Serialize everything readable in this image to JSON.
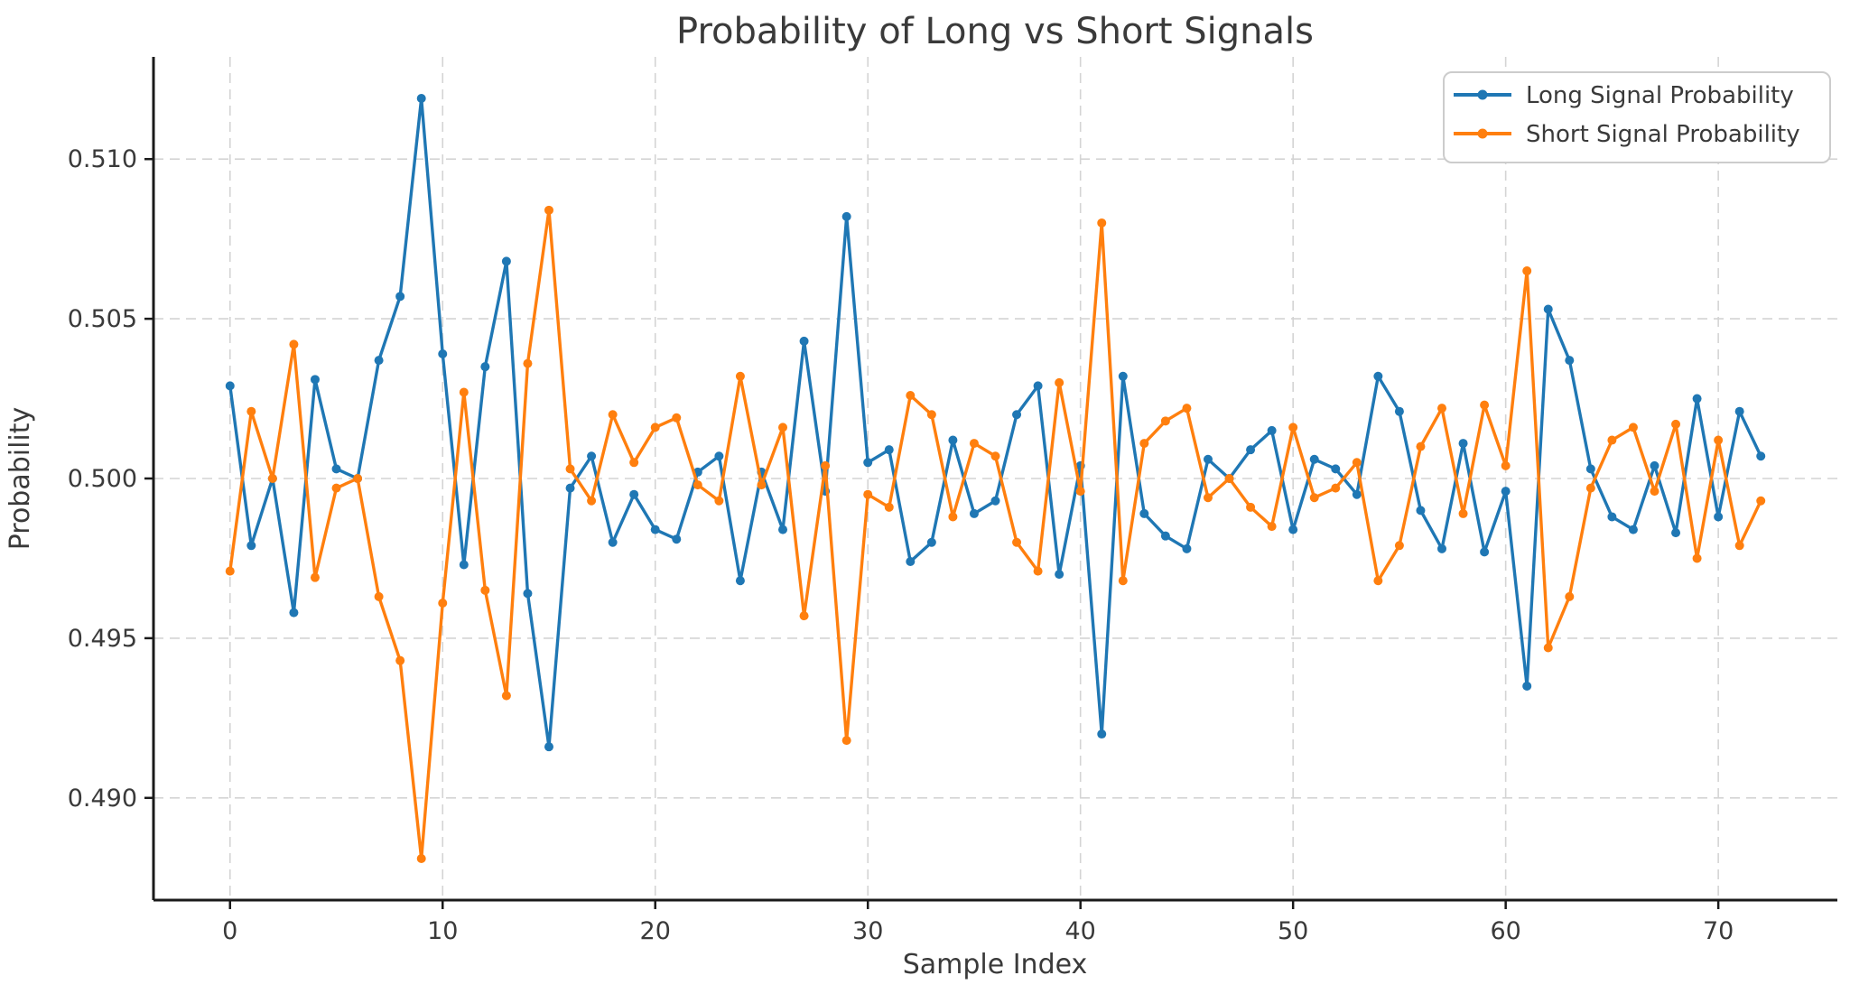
{
  "chart_data": {
    "type": "line",
    "title": "Probability of Long vs Short Signals",
    "xlabel": "Sample Index",
    "ylabel": "Probability",
    "x": [
      0,
      1,
      2,
      3,
      4,
      5,
      6,
      7,
      8,
      9,
      10,
      11,
      12,
      13,
      14,
      15,
      16,
      17,
      18,
      19,
      20,
      21,
      22,
      23,
      24,
      25,
      26,
      27,
      28,
      29,
      30,
      31,
      32,
      33,
      34,
      35,
      36,
      37,
      38,
      39,
      40,
      41,
      42,
      43,
      44,
      45,
      46,
      47,
      48,
      49,
      50,
      51,
      52,
      53,
      54,
      55,
      56,
      57,
      58,
      59,
      60,
      61,
      62,
      63,
      64,
      65,
      66,
      67,
      68,
      69,
      70,
      71,
      72
    ],
    "series": [
      {
        "name": "Long Signal Probability",
        "color": "#1f77b4",
        "values": [
          0.5029,
          0.4979,
          0.5,
          0.4958,
          0.5031,
          0.5003,
          0.5,
          0.5037,
          0.5057,
          0.5119,
          0.5039,
          0.4973,
          0.5035,
          0.5068,
          0.4964,
          0.4916,
          0.4997,
          0.5007,
          0.498,
          0.4995,
          0.4984,
          0.4981,
          0.5002,
          0.5007,
          0.4968,
          0.5002,
          0.4984,
          0.5043,
          0.4996,
          0.5082,
          0.5005,
          0.5009,
          0.4974,
          0.498,
          0.5012,
          0.4989,
          0.4993,
          0.502,
          0.5029,
          0.497,
          0.5004,
          0.492,
          0.5032,
          0.4989,
          0.4982,
          0.4978,
          0.5006,
          0.5,
          0.5009,
          0.5015,
          0.4984,
          0.5006,
          0.5003,
          0.4995,
          0.5032,
          0.5021,
          0.499,
          0.4978,
          0.5011,
          0.4977,
          0.4996,
          0.4935,
          0.5053,
          0.5037,
          0.5003,
          0.4988,
          0.4984,
          0.5004,
          0.4983,
          0.5025,
          0.4988,
          0.5021,
          0.5007
        ]
      },
      {
        "name": "Short Signal Probability",
        "color": "#ff7f0e",
        "values": [
          0.4971,
          0.5021,
          0.5,
          0.5042,
          0.4969,
          0.4997,
          0.5,
          0.4963,
          0.4943,
          0.4881,
          0.4961,
          0.5027,
          0.4965,
          0.4932,
          0.5036,
          0.5084,
          0.5003,
          0.4993,
          0.502,
          0.5005,
          0.5016,
          0.5019,
          0.4998,
          0.4993,
          0.5032,
          0.4998,
          0.5016,
          0.4957,
          0.5004,
          0.4918,
          0.4995,
          0.4991,
          0.5026,
          0.502,
          0.4988,
          0.5011,
          0.5007,
          0.498,
          0.4971,
          0.503,
          0.4996,
          0.508,
          0.4968,
          0.5011,
          0.5018,
          0.5022,
          0.4994,
          0.5,
          0.4991,
          0.4985,
          0.5016,
          0.4994,
          0.4997,
          0.5005,
          0.4968,
          0.4979,
          0.501,
          0.5022,
          0.4989,
          0.5023,
          0.5004,
          0.5065,
          0.4947,
          0.4963,
          0.4997,
          0.5012,
          0.5016,
          0.4996,
          0.5017,
          0.4975,
          0.5012,
          0.4979,
          0.4993
        ]
      }
    ],
    "xlim": [
      -3.6,
      75.6
    ],
    "ylim": [
      0.4868,
      0.5132
    ],
    "xticks": [
      0,
      10,
      20,
      30,
      40,
      50,
      60,
      70
    ],
    "yticks": [
      0.49,
      0.495,
      0.5,
      0.505,
      0.51
    ],
    "ytick_labels": [
      "0.490",
      "0.495",
      "0.500",
      "0.505",
      "0.510"
    ],
    "grid": true,
    "grid_style": "dashed",
    "legend_position": "upper right",
    "line_width": 3.4,
    "marker": "circle",
    "marker_radius": 5
  },
  "colors": {
    "background": "#ffffff",
    "grid": "#d4d4d4",
    "spine": "#1a1a1a",
    "text": "#3a3a3a",
    "legend_border": "#cccccc",
    "long_series": "#1f77b4",
    "short_series": "#ff7f0e"
  }
}
